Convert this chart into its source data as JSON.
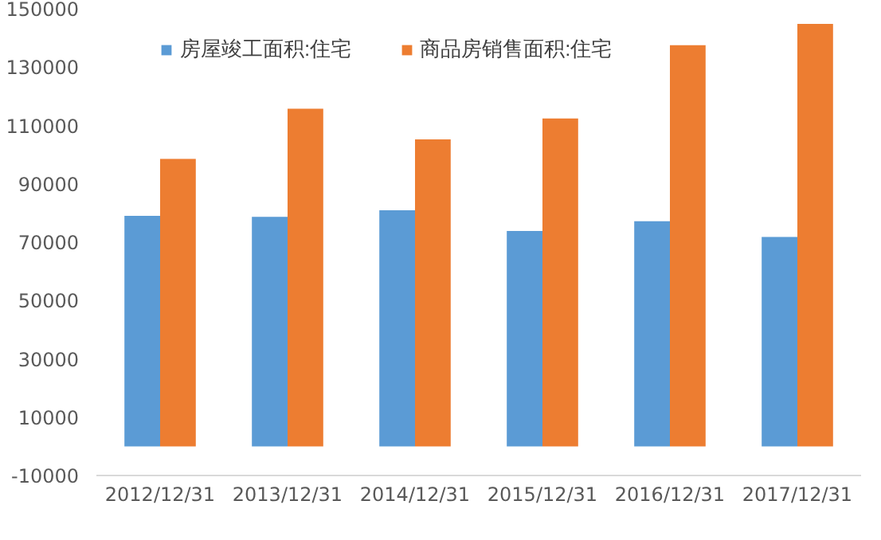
{
  "chart_data": {
    "type": "bar",
    "categories": [
      "2012/12/31",
      "2013/12/31",
      "2014/12/31",
      "2015/12/31",
      "2016/12/31",
      "2017/12/31"
    ],
    "series": [
      {
        "name": "房屋竣工面积:住宅",
        "color": "#5b9bd5",
        "values": [
          79000,
          78700,
          80900,
          73800,
          77200,
          71800
        ]
      },
      {
        "name": "商品房销售面积:住宅",
        "color": "#ed7d31",
        "values": [
          98500,
          115700,
          105200,
          112400,
          137500,
          144800
        ]
      }
    ],
    "ylim": [
      -10000,
      150000
    ],
    "yticks": [
      -10000,
      10000,
      30000,
      50000,
      70000,
      90000,
      110000,
      130000,
      150000
    ],
    "grid": false,
    "legend": "top"
  }
}
